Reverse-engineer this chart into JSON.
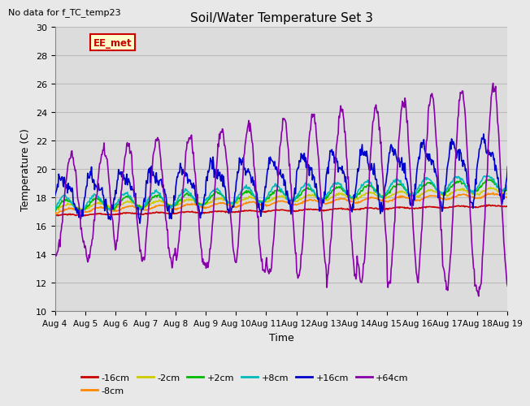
{
  "title": "Soil/Water Temperature Set 3",
  "xlabel": "Time",
  "ylabel": "Temperature (C)",
  "top_left_note": "No data for f_TC_temp23",
  "annotation_label": "EE_met",
  "ylim": [
    10,
    30
  ],
  "yticks": [
    10,
    12,
    14,
    16,
    18,
    20,
    22,
    24,
    26,
    28,
    30
  ],
  "xtick_labels": [
    "Aug 4",
    "Aug 5",
    "Aug 6",
    "Aug 7",
    "Aug 8",
    "Aug 9",
    "Aug 10",
    "Aug 11",
    "Aug 12",
    "Aug 13",
    "Aug 14",
    "Aug 15",
    "Aug 16",
    "Aug 17",
    "Aug 18",
    "Aug 19"
  ],
  "series": [
    {
      "label": "-16cm",
      "color": "#cc0000",
      "lw": 1.2
    },
    {
      "label": "-8cm",
      "color": "#ff8800",
      "lw": 1.2
    },
    {
      "label": "-2cm",
      "color": "#cccc00",
      "lw": 1.2
    },
    {
      "label": "+2cm",
      "color": "#00bb00",
      "lw": 1.2
    },
    {
      "label": "+8cm",
      "color": "#00bbbb",
      "lw": 1.2
    },
    {
      "label": "+16cm",
      "color": "#0000cc",
      "lw": 1.2
    },
    {
      "label": "+64cm",
      "color": "#8800aa",
      "lw": 1.2
    }
  ],
  "bg_color": "#e8e8e8",
  "plot_bg_color": "#e0e0e0",
  "grid_color": "#cccccc",
  "annotation_bg": "#ffffcc",
  "annotation_border": "#cc0000"
}
